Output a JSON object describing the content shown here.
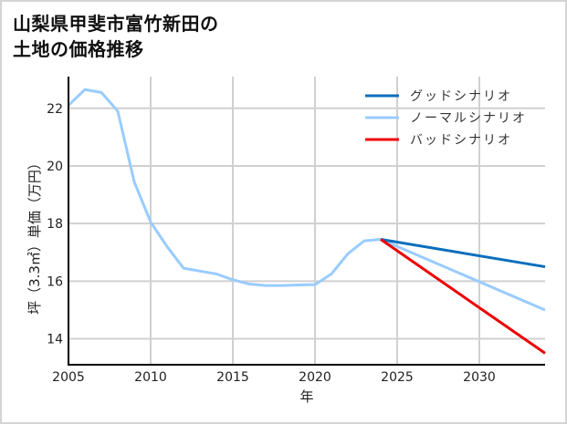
{
  "title": {
    "line1": "山梨県甲斐市富竹新田の",
    "line2": "土地の価格推移"
  },
  "colors": {
    "good": "#0a6ebd",
    "normal": "#99ccff",
    "bad": "#ee0000",
    "grid": "#d0d0d0",
    "axis": "#000000",
    "border": "#d4d4d4"
  },
  "chart_data": {
    "type": "line",
    "title": "山梨県甲斐市富竹新田の土地の価格推移",
    "xlabel": "年",
    "ylabel": "坪（3.3㎡）単価（万円）",
    "xlim": [
      2005,
      2034
    ],
    "ylim": [
      13.1,
      23.1
    ],
    "xticks": [
      2005,
      2010,
      2015,
      2020,
      2025,
      2030
    ],
    "yticks": [
      14,
      16,
      18,
      20,
      22
    ],
    "grid": true,
    "legend_position": "upper right",
    "series": [
      {
        "name": "グッドシナリオ",
        "color": "#0a6ebd",
        "x": [
          2024,
          2034
        ],
        "y": [
          17.45,
          16.5
        ]
      },
      {
        "name": "ノーマルシナリオ",
        "color": "#99ccff",
        "x": [
          2005,
          2006,
          2007,
          2008,
          2009,
          2010,
          2011,
          2012,
          2013,
          2014,
          2015,
          2016,
          2017,
          2018,
          2019,
          2020,
          2021,
          2022,
          2023,
          2024,
          2034
        ],
        "y": [
          22.1,
          22.65,
          22.55,
          21.9,
          19.45,
          18.05,
          17.2,
          16.45,
          16.35,
          16.25,
          16.05,
          15.9,
          15.85,
          15.85,
          15.87,
          15.88,
          16.25,
          16.95,
          17.4,
          17.45,
          15.0
        ]
      },
      {
        "name": "バッドシナリオ",
        "color": "#ee0000",
        "x": [
          2024,
          2034
        ],
        "y": [
          17.45,
          13.5
        ]
      }
    ]
  }
}
